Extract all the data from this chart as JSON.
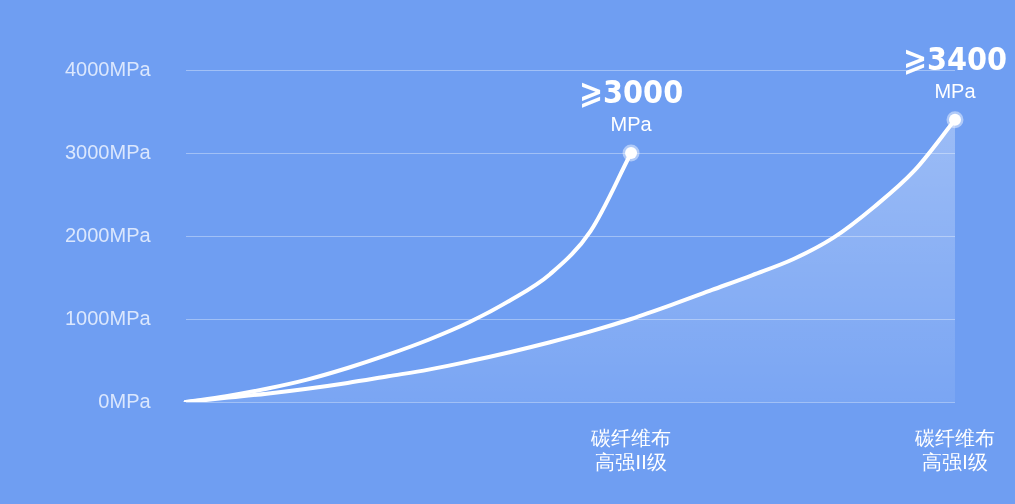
{
  "chart_data": {
    "type": "line",
    "categories": [
      null,
      null,
      null,
      null,
      null,
      null,
      null,
      null,
      null,
      null,
      null,
      "碳纤维布高强II级",
      null,
      null,
      null,
      null,
      null,
      null,
      null,
      "碳纤维布高强I级"
    ],
    "series": [
      {
        "type": "line",
        "color": "#ffffff",
        "values": [
          0,
          70,
          160,
          270,
          410,
          570,
          750,
          960,
          1220,
          1540,
          2060,
          3000,
          null,
          null,
          null,
          null,
          null,
          null,
          null,
          null
        ],
        "value_labels": [
          null,
          null,
          null,
          null,
          null,
          null,
          null,
          null,
          null,
          null,
          null,
          "⩾3000\nMPa",
          null,
          null,
          null,
          null,
          null,
          null,
          null,
          null
        ]
      },
      {
        "type": "area",
        "color": "#ffffff",
        "values": [
          0,
          50,
          100,
          160,
          230,
          310,
          390,
          490,
          600,
          720,
          850,
          1000,
          1170,
          1350,
          1530,
          1720,
          1980,
          2350,
          2790,
          3400
        ],
        "value_labels": [
          null,
          null,
          null,
          null,
          null,
          null,
          null,
          null,
          null,
          null,
          null,
          null,
          null,
          null,
          null,
          null,
          null,
          null,
          null,
          "⩾3400\nMPa"
        ]
      }
    ],
    "ylim": [
      0,
      4000
    ],
    "yticks": [
      {
        "value": 0,
        "label": "0MPa"
      },
      {
        "value": 1000,
        "label": "1000MPa"
      },
      {
        "value": 2000,
        "label": "2000MPa"
      },
      {
        "value": 3000,
        "label": "3000MPa"
      },
      {
        "value": 4000,
        "label": "4000MPa"
      }
    ],
    "grid": "y",
    "legend": false,
    "line_style": "solid"
  }
}
